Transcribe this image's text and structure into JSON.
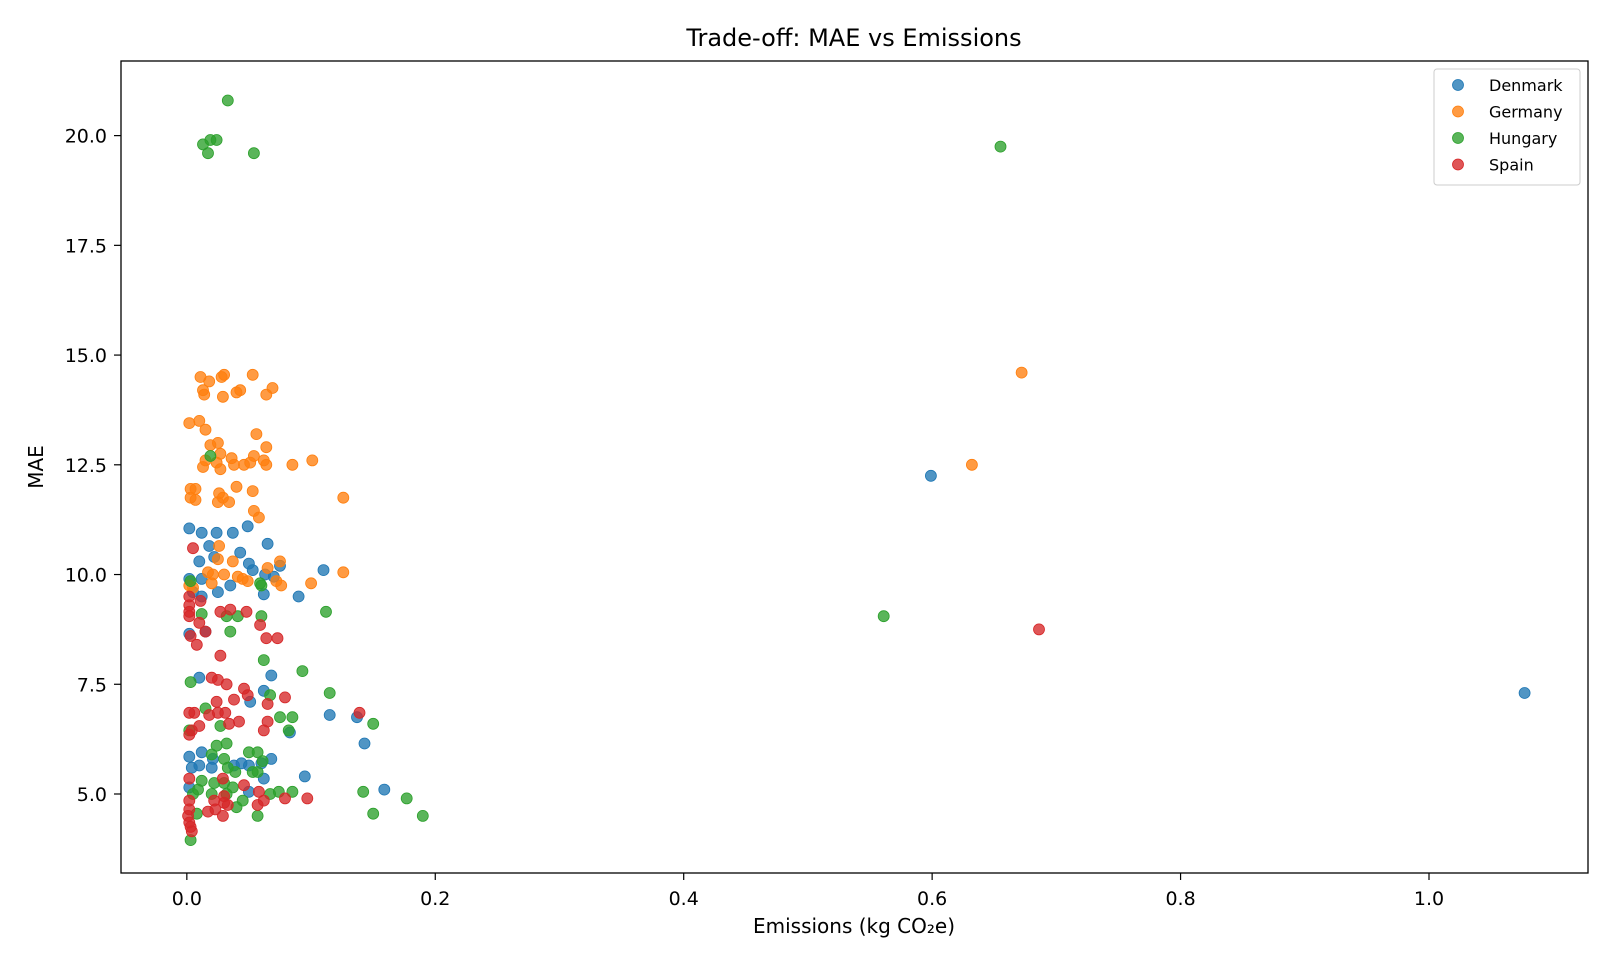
{
  "chart_data": {
    "type": "scatter",
    "title": "Trade-off: MAE vs Emissions",
    "xlabel": "Emissions (kg CO₂e)",
    "ylabel": "MAE",
    "xlim": [
      -0.053,
      1.128
    ],
    "ylim": [
      3.2,
      21.7
    ],
    "x_ticks": [
      0.0,
      0.2,
      0.4,
      0.6,
      0.8,
      1.0
    ],
    "x_tick_labels": [
      "0.0",
      "0.2",
      "0.4",
      "0.6",
      "0.8",
      "1.0"
    ],
    "y_ticks": [
      5.0,
      7.5,
      10.0,
      12.5,
      15.0,
      17.5,
      20.0
    ],
    "y_tick_labels": [
      "5.0",
      "7.5",
      "10.0",
      "12.5",
      "15.0",
      "17.5",
      "20.0"
    ],
    "grid": false,
    "legend_position": "top-right",
    "series": [
      {
        "name": "Denmark",
        "color": "#1f77b4",
        "points": [
          [
            0.002,
            11.05
          ],
          [
            0.012,
            10.95
          ],
          [
            0.024,
            10.95
          ],
          [
            0.037,
            10.95
          ],
          [
            0.049,
            11.1
          ],
          [
            0.018,
            10.65
          ],
          [
            0.043,
            10.5
          ],
          [
            0.065,
            10.7
          ],
          [
            0.01,
            10.3
          ],
          [
            0.022,
            10.4
          ],
          [
            0.05,
            10.25
          ],
          [
            0.075,
            10.2
          ],
          [
            0.11,
            10.1
          ],
          [
            0.053,
            10.1
          ],
          [
            0.063,
            10.0
          ],
          [
            0.07,
            9.95
          ],
          [
            0.035,
            9.75
          ],
          [
            0.012,
            9.9
          ],
          [
            0.062,
            9.55
          ],
          [
            0.09,
            9.5
          ],
          [
            0.025,
            9.6
          ],
          [
            0.002,
            9.9
          ],
          [
            0.005,
            9.6
          ],
          [
            0.012,
            9.5
          ],
          [
            0.002,
            8.65
          ],
          [
            0.015,
            8.7
          ],
          [
            0.01,
            7.65
          ],
          [
            0.068,
            7.7
          ],
          [
            0.062,
            7.35
          ],
          [
            0.051,
            7.1
          ],
          [
            0.115,
            6.8
          ],
          [
            0.137,
            6.75
          ],
          [
            0.143,
            6.15
          ],
          [
            0.083,
            6.4
          ],
          [
            0.002,
            5.85
          ],
          [
            0.012,
            5.95
          ],
          [
            0.021,
            5.8
          ],
          [
            0.038,
            5.65
          ],
          [
            0.044,
            5.7
          ],
          [
            0.05,
            5.65
          ],
          [
            0.06,
            5.7
          ],
          [
            0.068,
            5.8
          ],
          [
            0.004,
            5.6
          ],
          [
            0.01,
            5.65
          ],
          [
            0.02,
            5.6
          ],
          [
            0.095,
            5.4
          ],
          [
            0.062,
            5.35
          ],
          [
            0.002,
            5.15
          ],
          [
            0.05,
            5.05
          ],
          [
            0.159,
            5.1
          ],
          [
            0.599,
            12.25
          ],
          [
            1.077,
            7.3
          ]
        ]
      },
      {
        "name": "Germany",
        "color": "#ff7f0e",
        "points": [
          [
            0.011,
            14.5
          ],
          [
            0.018,
            14.4
          ],
          [
            0.028,
            14.5
          ],
          [
            0.03,
            14.55
          ],
          [
            0.053,
            14.55
          ],
          [
            0.013,
            14.2
          ],
          [
            0.014,
            14.1
          ],
          [
            0.04,
            14.15
          ],
          [
            0.043,
            14.2
          ],
          [
            0.069,
            14.25
          ],
          [
            0.064,
            14.1
          ],
          [
            0.029,
            14.05
          ],
          [
            0.002,
            13.45
          ],
          [
            0.01,
            13.5
          ],
          [
            0.015,
            13.3
          ],
          [
            0.056,
            13.2
          ],
          [
            0.019,
            12.95
          ],
          [
            0.025,
            13.0
          ],
          [
            0.064,
            12.9
          ],
          [
            0.015,
            12.6
          ],
          [
            0.027,
            12.75
          ],
          [
            0.036,
            12.65
          ],
          [
            0.054,
            12.7
          ],
          [
            0.062,
            12.6
          ],
          [
            0.101,
            12.6
          ],
          [
            0.013,
            12.45
          ],
          [
            0.024,
            12.55
          ],
          [
            0.027,
            12.4
          ],
          [
            0.038,
            12.5
          ],
          [
            0.046,
            12.5
          ],
          [
            0.051,
            12.55
          ],
          [
            0.064,
            12.5
          ],
          [
            0.085,
            12.5
          ],
          [
            0.003,
            11.95
          ],
          [
            0.007,
            11.95
          ],
          [
            0.026,
            11.85
          ],
          [
            0.04,
            12.0
          ],
          [
            0.053,
            11.9
          ],
          [
            0.003,
            11.75
          ],
          [
            0.007,
            11.7
          ],
          [
            0.025,
            11.65
          ],
          [
            0.029,
            11.75
          ],
          [
            0.034,
            11.65
          ],
          [
            0.126,
            11.75
          ],
          [
            0.054,
            11.45
          ],
          [
            0.058,
            11.3
          ],
          [
            0.026,
            10.65
          ],
          [
            0.025,
            10.35
          ],
          [
            0.037,
            10.3
          ],
          [
            0.065,
            10.15
          ],
          [
            0.075,
            10.3
          ],
          [
            0.017,
            10.05
          ],
          [
            0.021,
            10.0
          ],
          [
            0.03,
            10.0
          ],
          [
            0.041,
            9.95
          ],
          [
            0.045,
            9.9
          ],
          [
            0.049,
            9.85
          ],
          [
            0.072,
            9.85
          ],
          [
            0.076,
            9.75
          ],
          [
            0.1,
            9.8
          ],
          [
            0.126,
            10.05
          ],
          [
            0.002,
            9.75
          ],
          [
            0.005,
            9.7
          ],
          [
            0.02,
            9.8
          ],
          [
            0.672,
            14.6
          ],
          [
            0.632,
            12.5
          ]
        ]
      },
      {
        "name": "Hungary",
        "color": "#2ca02c",
        "points": [
          [
            0.033,
            20.8
          ],
          [
            0.013,
            19.8
          ],
          [
            0.019,
            19.9
          ],
          [
            0.024,
            19.9
          ],
          [
            0.017,
            19.6
          ],
          [
            0.054,
            19.6
          ],
          [
            0.019,
            12.7
          ],
          [
            0.003,
            9.85
          ],
          [
            0.059,
            9.8
          ],
          [
            0.06,
            9.75
          ],
          [
            0.112,
            9.15
          ],
          [
            0.032,
            9.05
          ],
          [
            0.041,
            9.05
          ],
          [
            0.06,
            9.05
          ],
          [
            0.012,
            9.1
          ],
          [
            0.035,
            8.7
          ],
          [
            0.062,
            8.05
          ],
          [
            0.093,
            7.8
          ],
          [
            0.003,
            7.55
          ],
          [
            0.115,
            7.3
          ],
          [
            0.067,
            7.25
          ],
          [
            0.015,
            6.95
          ],
          [
            0.075,
            6.75
          ],
          [
            0.085,
            6.75
          ],
          [
            0.082,
            6.45
          ],
          [
            0.027,
            6.55
          ],
          [
            0.15,
            6.6
          ],
          [
            0.002,
            6.45
          ],
          [
            0.024,
            6.1
          ],
          [
            0.032,
            6.15
          ],
          [
            0.05,
            5.95
          ],
          [
            0.057,
            5.95
          ],
          [
            0.061,
            5.75
          ],
          [
            0.03,
            5.8
          ],
          [
            0.02,
            5.9
          ],
          [
            0.033,
            5.6
          ],
          [
            0.039,
            5.5
          ],
          [
            0.053,
            5.5
          ],
          [
            0.057,
            5.5
          ],
          [
            0.012,
            5.3
          ],
          [
            0.022,
            5.25
          ],
          [
            0.03,
            5.25
          ],
          [
            0.037,
            5.15
          ],
          [
            0.009,
            5.1
          ],
          [
            0.005,
            5.0
          ],
          [
            0.02,
            5.0
          ],
          [
            0.032,
            5.0
          ],
          [
            0.067,
            5.0
          ],
          [
            0.074,
            5.05
          ],
          [
            0.085,
            5.05
          ],
          [
            0.142,
            5.05
          ],
          [
            0.177,
            4.9
          ],
          [
            0.045,
            4.85
          ],
          [
            0.04,
            4.7
          ],
          [
            0.008,
            4.55
          ],
          [
            0.057,
            4.5
          ],
          [
            0.15,
            4.55
          ],
          [
            0.19,
            4.5
          ],
          [
            0.003,
            3.95
          ],
          [
            0.561,
            9.05
          ],
          [
            0.655,
            19.75
          ]
        ]
      },
      {
        "name": "Spain",
        "color": "#d62728",
        "points": [
          [
            0.005,
            10.6
          ],
          [
            0.002,
            9.5
          ],
          [
            0.002,
            9.3
          ],
          [
            0.002,
            9.15
          ],
          [
            0.002,
            9.05
          ],
          [
            0.011,
            9.4
          ],
          [
            0.027,
            9.15
          ],
          [
            0.035,
            9.2
          ],
          [
            0.048,
            9.15
          ],
          [
            0.01,
            8.9
          ],
          [
            0.015,
            8.7
          ],
          [
            0.059,
            8.85
          ],
          [
            0.064,
            8.55
          ],
          [
            0.073,
            8.55
          ],
          [
            0.003,
            8.6
          ],
          [
            0.008,
            8.4
          ],
          [
            0.027,
            8.15
          ],
          [
            0.02,
            7.65
          ],
          [
            0.025,
            7.6
          ],
          [
            0.032,
            7.5
          ],
          [
            0.046,
            7.4
          ],
          [
            0.049,
            7.25
          ],
          [
            0.065,
            7.05
          ],
          [
            0.079,
            7.2
          ],
          [
            0.024,
            7.1
          ],
          [
            0.038,
            7.15
          ],
          [
            0.002,
            6.85
          ],
          [
            0.006,
            6.85
          ],
          [
            0.018,
            6.8
          ],
          [
            0.025,
            6.85
          ],
          [
            0.031,
            6.85
          ],
          [
            0.139,
            6.85
          ],
          [
            0.042,
            6.65
          ],
          [
            0.065,
            6.65
          ],
          [
            0.034,
            6.6
          ],
          [
            0.01,
            6.55
          ],
          [
            0.004,
            6.45
          ],
          [
            0.002,
            6.35
          ],
          [
            0.062,
            6.45
          ],
          [
            0.002,
            5.35
          ],
          [
            0.029,
            5.35
          ],
          [
            0.046,
            5.2
          ],
          [
            0.058,
            5.05
          ],
          [
            0.002,
            4.85
          ],
          [
            0.022,
            4.85
          ],
          [
            0.03,
            4.8
          ],
          [
            0.03,
            4.95
          ],
          [
            0.062,
            4.85
          ],
          [
            0.079,
            4.9
          ],
          [
            0.097,
            4.9
          ],
          [
            0.002,
            4.65
          ],
          [
            0.017,
            4.6
          ],
          [
            0.023,
            4.65
          ],
          [
            0.033,
            4.75
          ],
          [
            0.057,
            4.75
          ],
          [
            0.001,
            4.5
          ],
          [
            0.002,
            4.35
          ],
          [
            0.003,
            4.25
          ],
          [
            0.004,
            4.15
          ],
          [
            0.029,
            4.5
          ],
          [
            0.686,
            8.75
          ]
        ]
      }
    ]
  }
}
